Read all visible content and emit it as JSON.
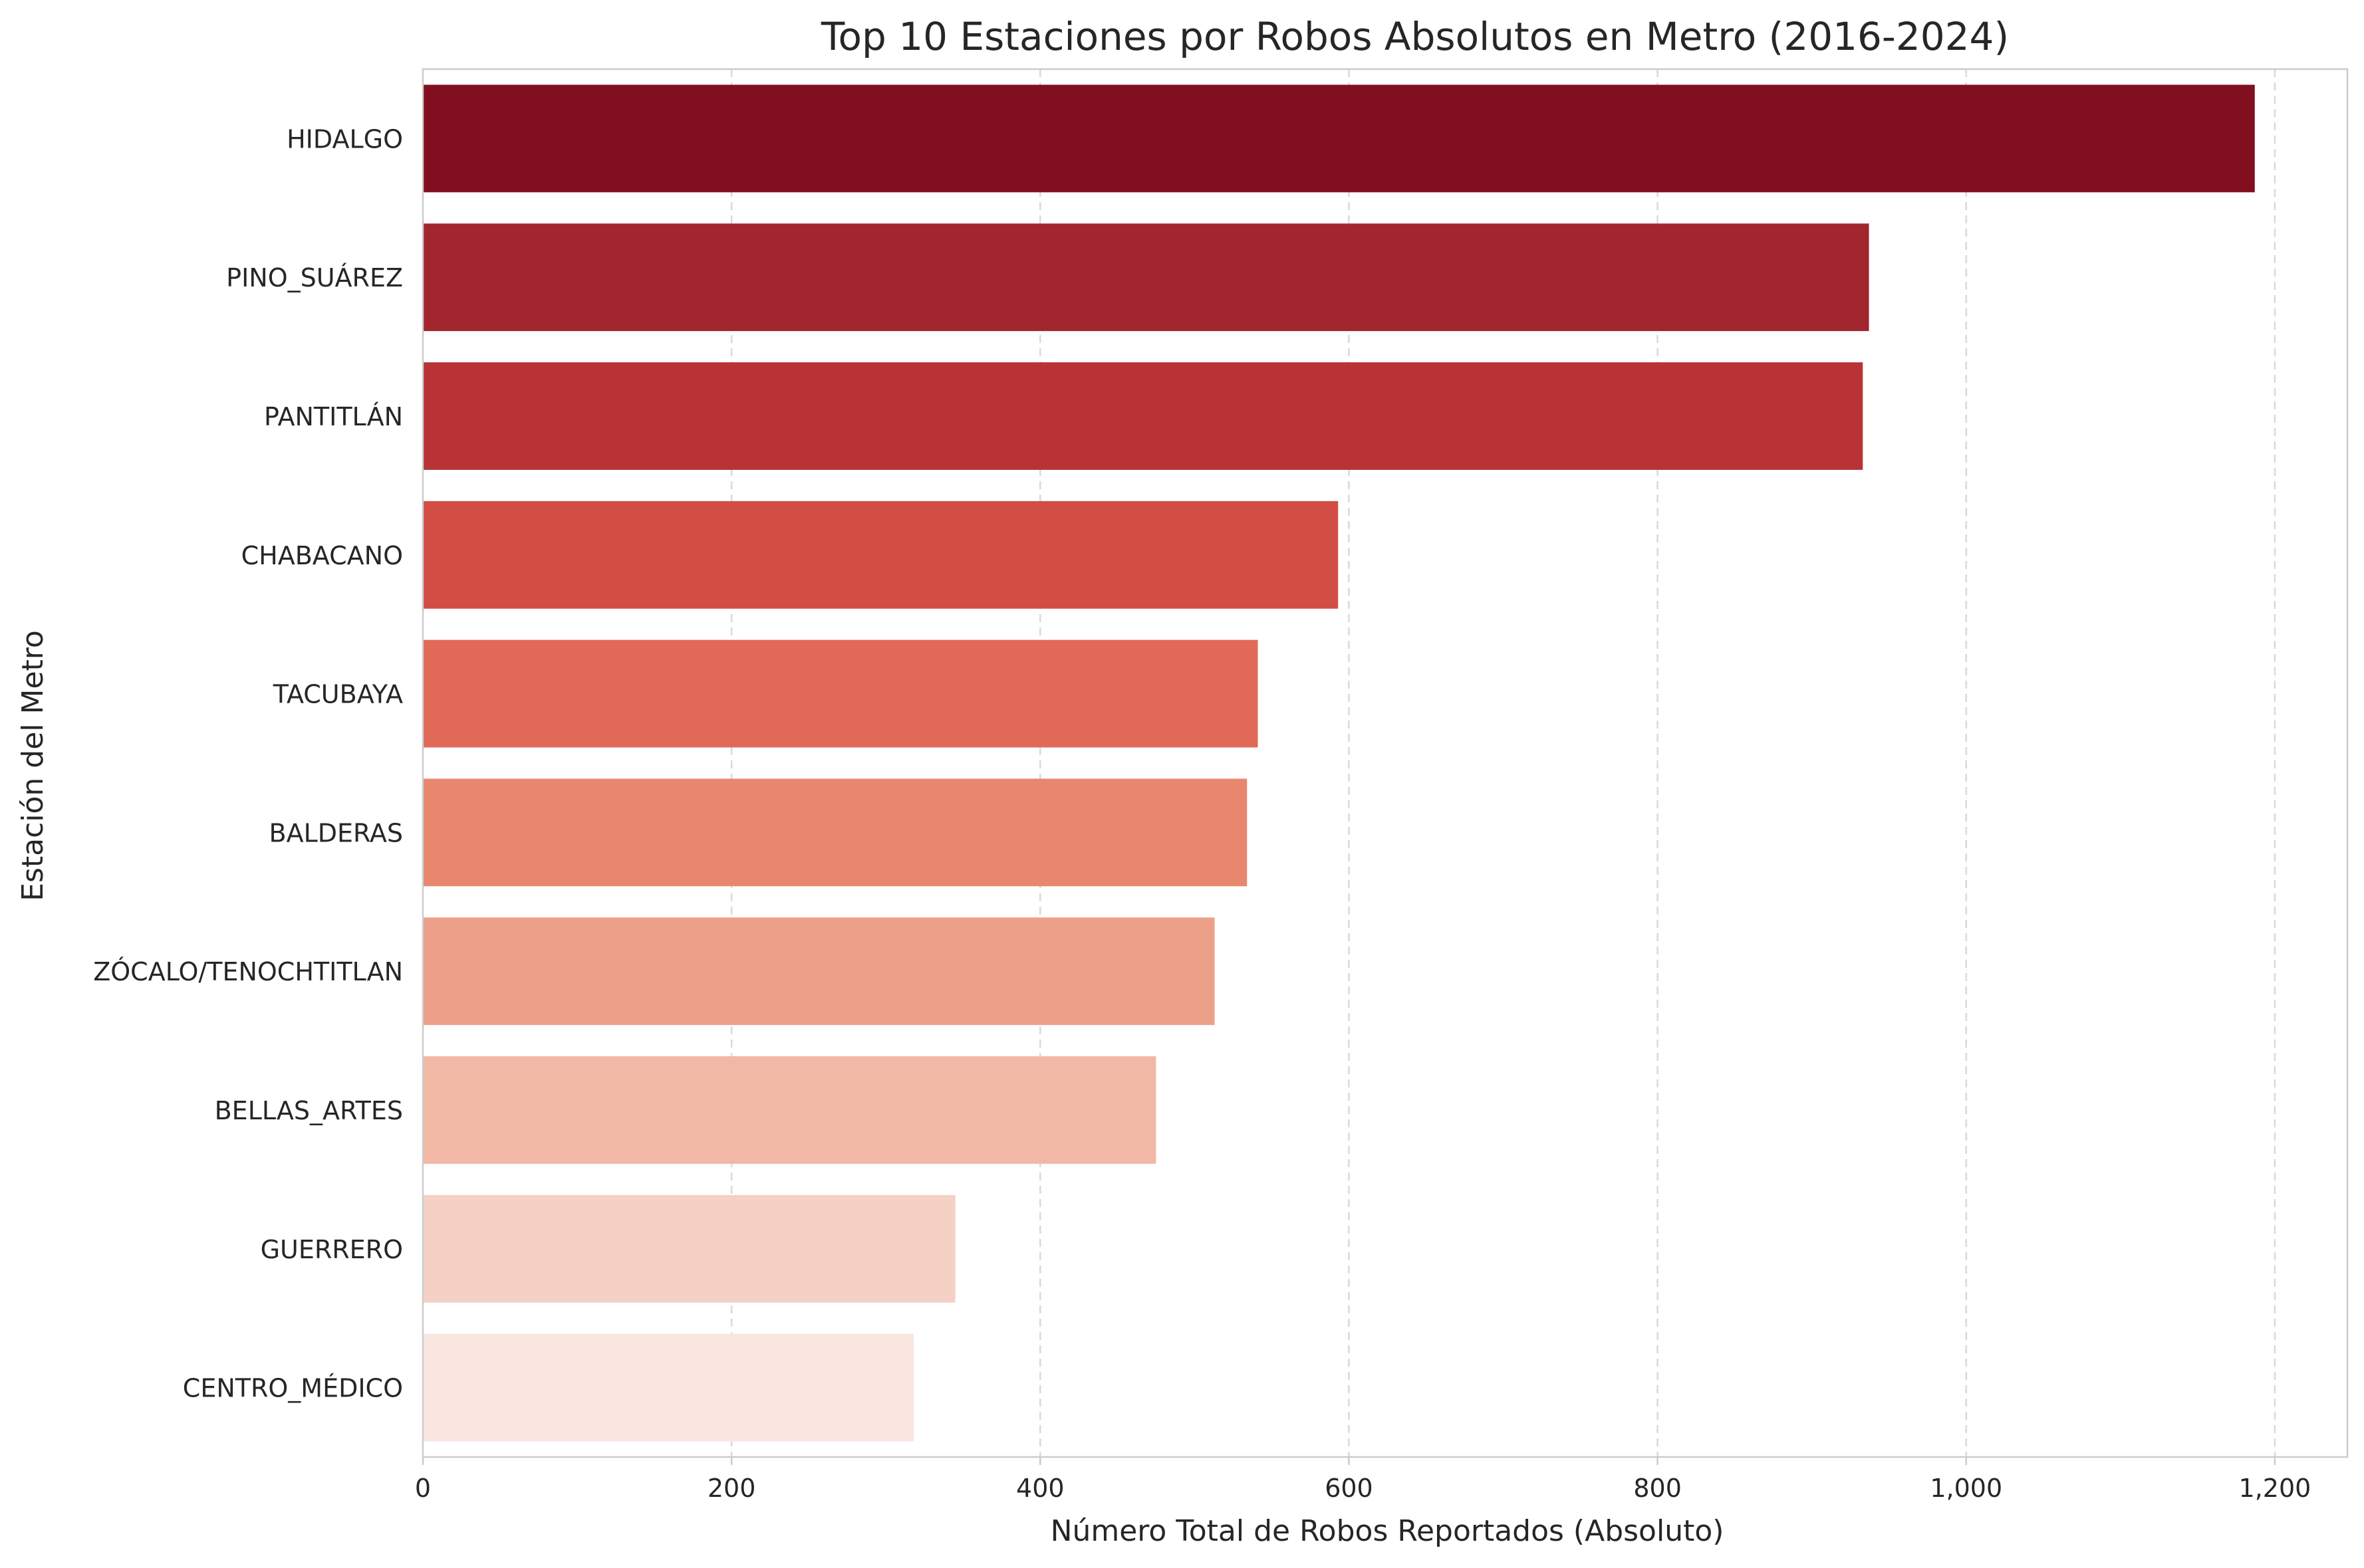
{
  "chart_data": {
    "type": "bar",
    "orientation": "horizontal",
    "title": "Top 10 Estaciones por Robos Absolutos en Metro (2016-2024)",
    "xlabel": "Número Total de Robos Reportados (Absoluto)",
    "ylabel": "Estación del Metro",
    "categories": [
      "HIDALGO",
      "PINO_SUÁREZ",
      "PANTITLÁN",
      "CHABACANO",
      "TACUBAYA",
      "BALDERAS",
      "ZÓCALO/TENOCHTITLAN",
      "BELLAS_ARTES",
      "GUERRERO",
      "CENTRO_MÉDICO"
    ],
    "values": [
      1187,
      937,
      933,
      593,
      541,
      534,
      513,
      475,
      345,
      318
    ],
    "colors": [
      "#820f20",
      "#a2262d",
      "#b83236",
      "#d24d44",
      "#e06a57",
      "#e8876e",
      "#eca089",
      "#f0b8a5",
      "#f4d1c4",
      "#f9e6e0"
    ],
    "xlim": [
      0,
      1247
    ],
    "xticks": [
      0,
      200,
      400,
      600,
      800,
      1000,
      1200
    ],
    "xtick_labels": [
      "0",
      "200",
      "400",
      "600",
      "800",
      "1,000",
      "1,200"
    ],
    "grid": "x-dashed",
    "legend": "none"
  }
}
